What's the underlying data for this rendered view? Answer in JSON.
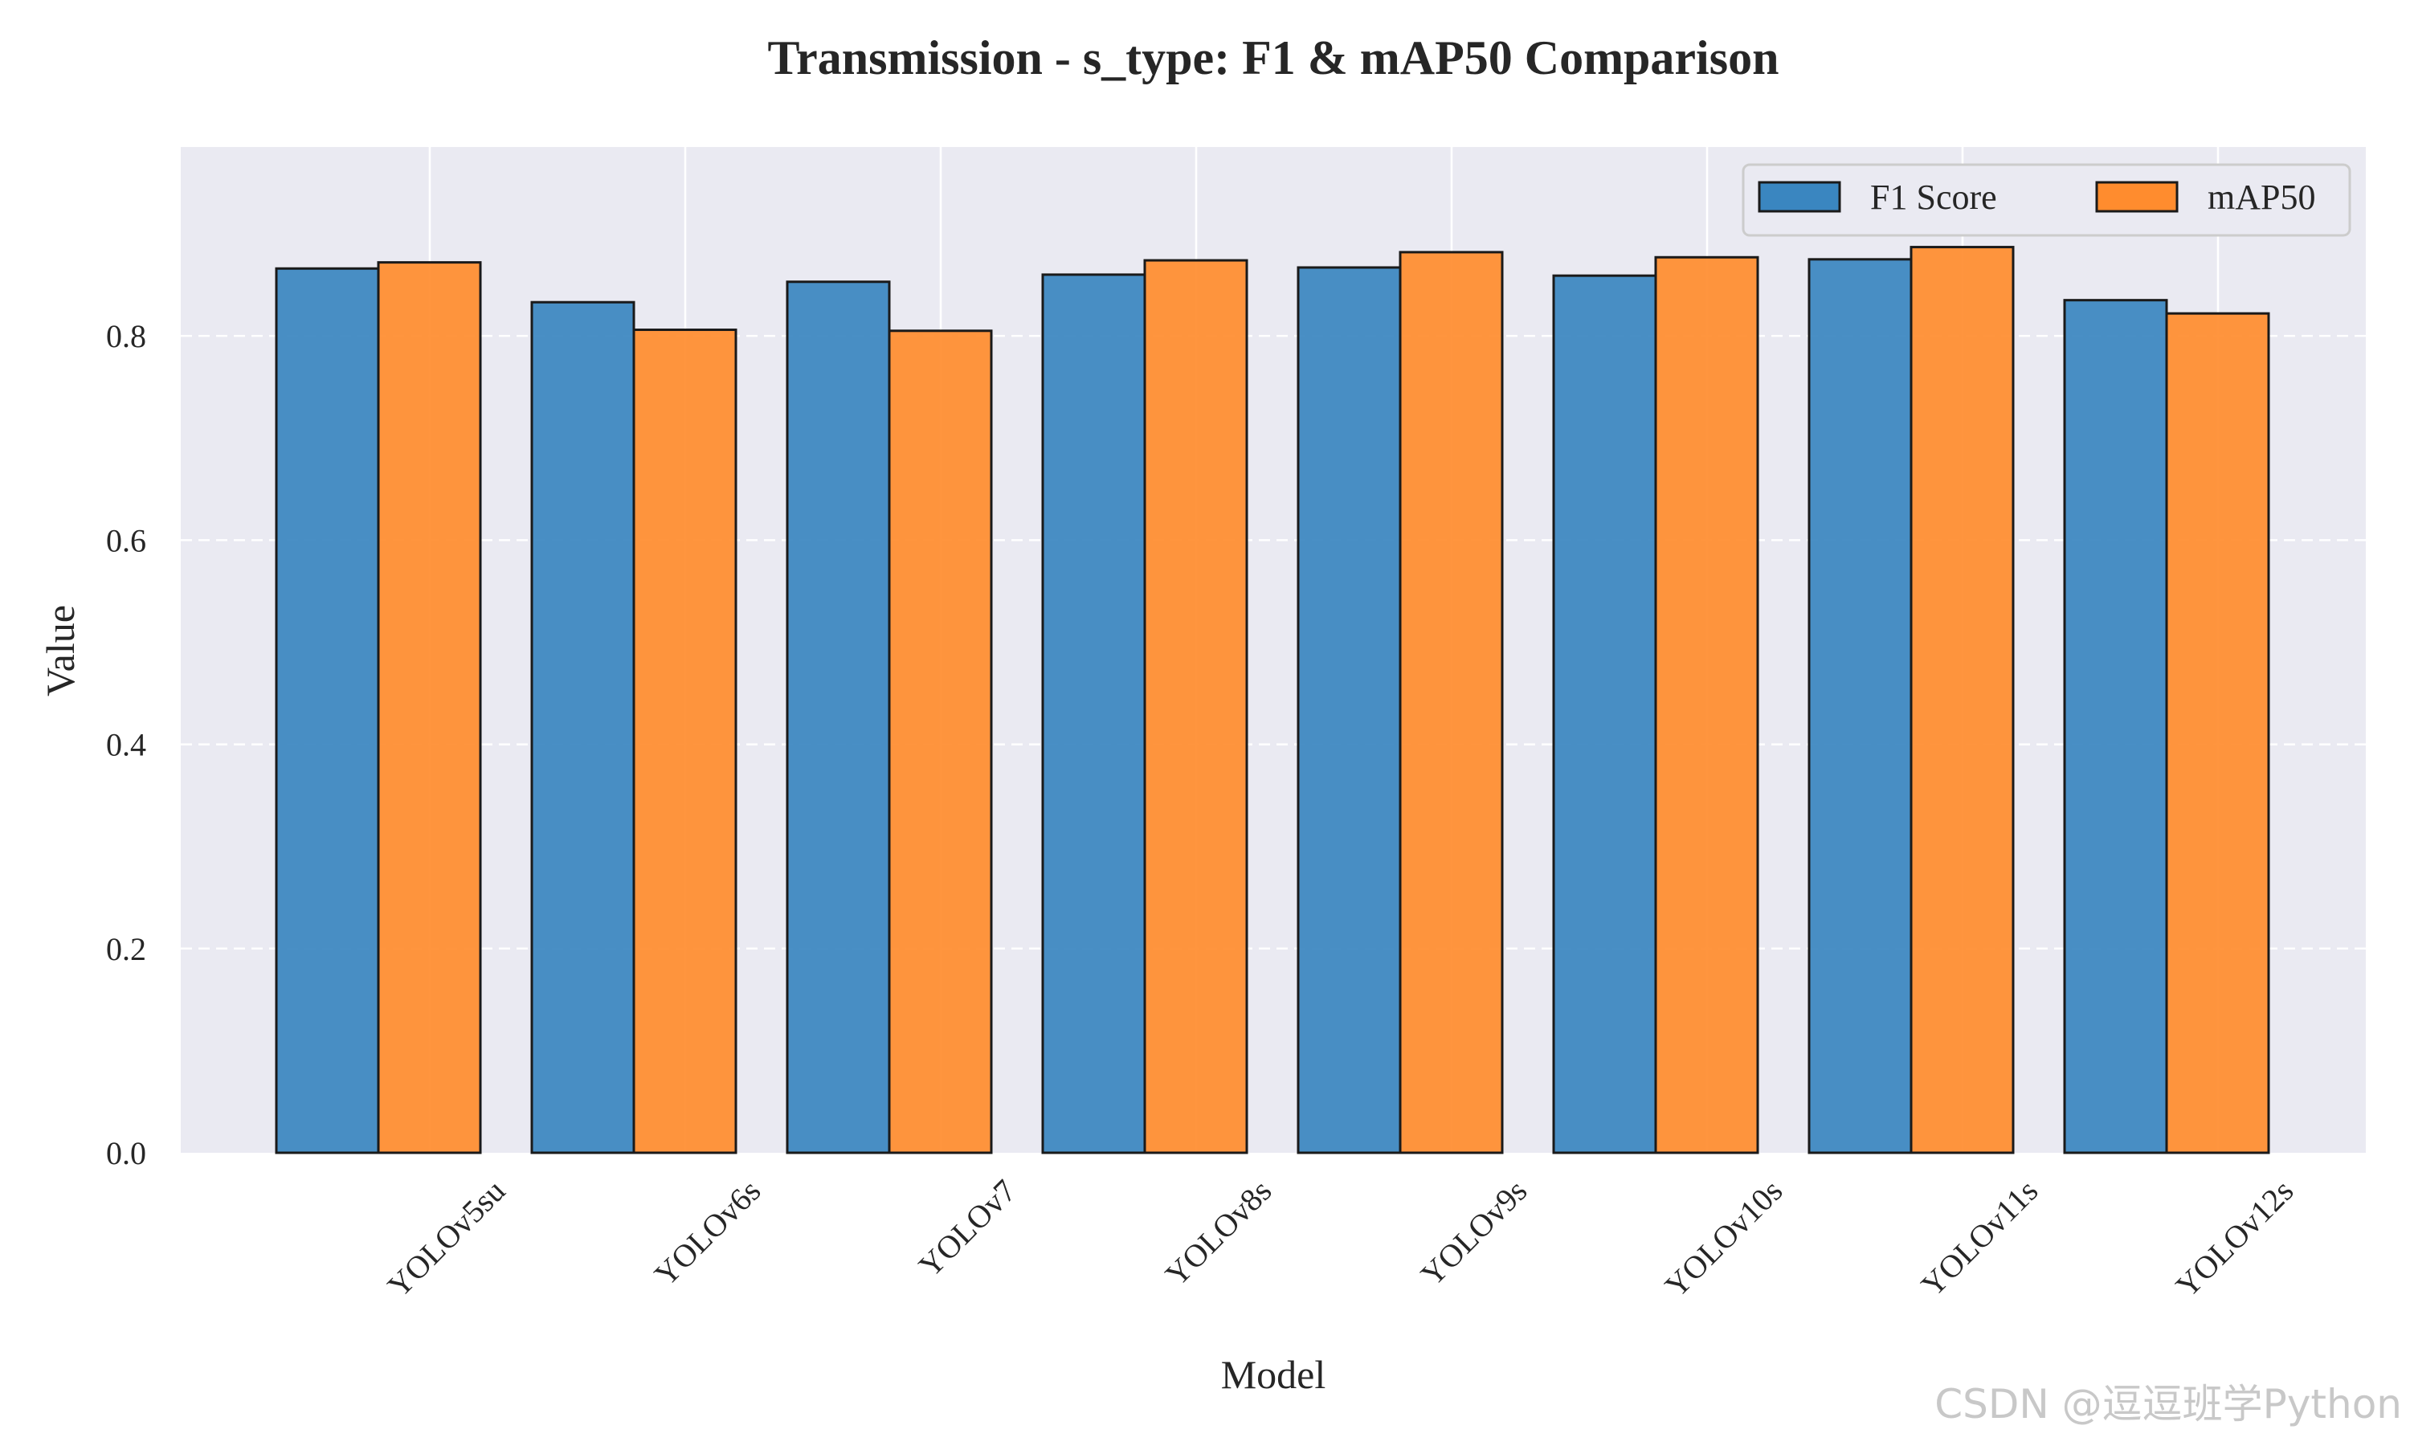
{
  "chart_data": {
    "type": "bar",
    "title": "Transmission - s_type: F1 & mAP50 Comparison",
    "xlabel": "Model",
    "ylabel": "Value",
    "categories": [
      "YOLOv5su",
      "YOLOv6s",
      "YOLOv7",
      "YOLOv8s",
      "YOLOv9s",
      "YOLOv10s",
      "YOLOv11s",
      "YOLOv12s"
    ],
    "series": [
      {
        "name": "F1 Score",
        "color": "#3a86c0",
        "values": [
          0.866,
          0.833,
          0.853,
          0.86,
          0.867,
          0.859,
          0.875,
          0.835
        ]
      },
      {
        "name": "mAP50",
        "color": "#ff8c2e",
        "values": [
          0.872,
          0.806,
          0.805,
          0.874,
          0.882,
          0.877,
          0.887,
          0.822
        ]
      }
    ],
    "ylim": [
      0,
      0.985
    ],
    "yticks": [
      "0.0",
      "0.2",
      "0.4",
      "0.6",
      "0.8"
    ],
    "grid": true,
    "legend_position": "top-right",
    "background": "#eaeaf2"
  },
  "watermark": "CSDN @逗逗班学Python"
}
